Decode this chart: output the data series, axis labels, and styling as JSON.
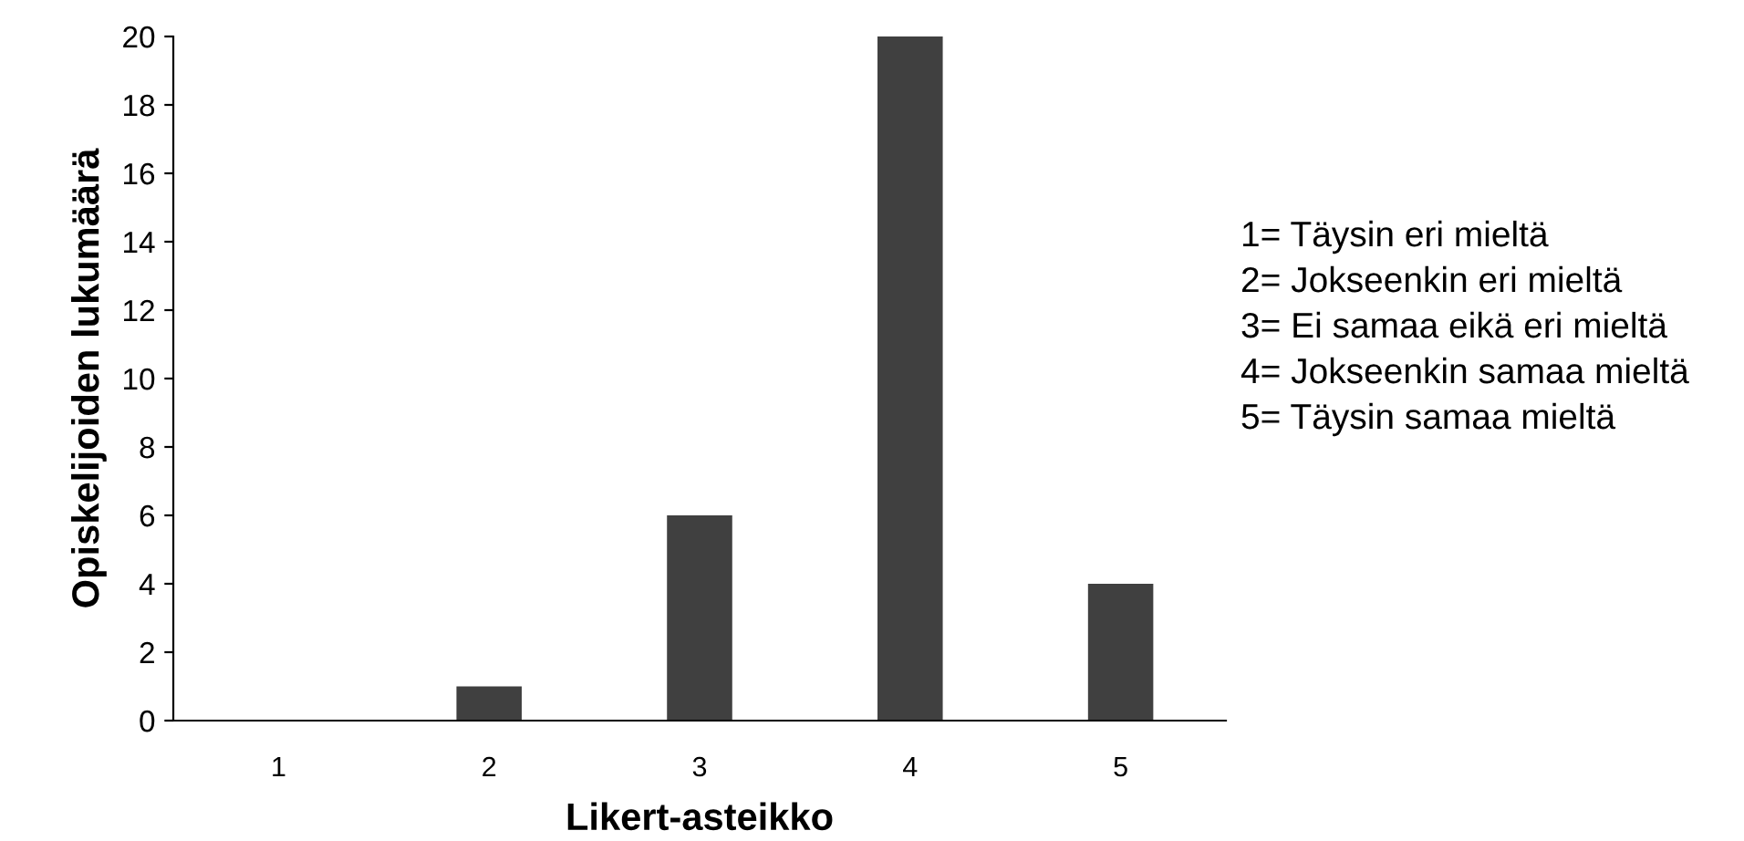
{
  "chart_data": {
    "type": "bar",
    "xlabel": "Likert-asteikko",
    "ylabel": "Opiskelijoiden lukumäärä",
    "categories": [
      "1",
      "2",
      "3",
      "4",
      "5"
    ],
    "values": [
      0,
      1,
      6,
      20,
      4
    ],
    "color": "#404040",
    "ylim": [
      0,
      20
    ],
    "yticks": [
      0,
      2,
      4,
      6,
      8,
      10,
      12,
      14,
      16,
      18,
      20
    ],
    "grid": false,
    "annotations": [
      "1= Täysin eri mieltä",
      "2= Jokseenkin eri mieltä",
      "3= Ei samaa eikä eri mieltä",
      "4= Jokseenkin samaa mieltä",
      "5= Täysin samaa mieltä"
    ]
  }
}
